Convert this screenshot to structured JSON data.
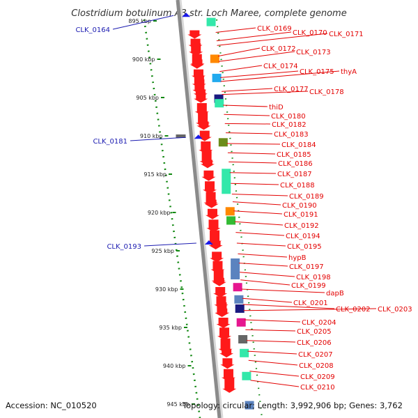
{
  "title": "Clostridium botulinum A3 str. Loch Maree, complete genome",
  "accession": "Accession: NC_010520",
  "topology": "Topology: circular; Length: 3,992,906 bp; Genes: 3,762",
  "colors": {
    "backbone": "#8a8a8a",
    "gene_red": "#ff1a1a",
    "label_red": "#e30000",
    "label_blue": "#1a1ab0",
    "tick_green": "#118811",
    "mint": "#33e8aa",
    "orange": "#ff8800",
    "navy": "#1a1a80",
    "steel": "#5b83bf",
    "magenta": "#e6168f",
    "gray": "#666666",
    "olive": "#6b8c1a",
    "green": "#33bb33",
    "sky": "#22aaee"
  },
  "scale": {
    "unit": "kbp",
    "ticks": [
      {
        "kbp": 895,
        "label": "895 kbp"
      },
      {
        "kbp": 900,
        "label": "900 kbp"
      },
      {
        "kbp": 905,
        "label": "905 kbp"
      },
      {
        "kbp": 910,
        "label": "910 kbp"
      },
      {
        "kbp": 915,
        "label": "915 kbp"
      },
      {
        "kbp": 920,
        "label": "920 kbp"
      },
      {
        "kbp": 925,
        "label": "925 kbp"
      },
      {
        "kbp": 930,
        "label": "930 kbp"
      },
      {
        "kbp": 935,
        "label": "935 kbp"
      },
      {
        "kbp": 940,
        "label": "940 kbp"
      },
      {
        "kbp": 945,
        "label": "945 kbp"
      }
    ]
  },
  "reverse_genes": [
    {
      "name": "CLK_0164",
      "kbp": 894.3
    },
    {
      "name": "CLK_0181",
      "kbp": 910.2
    },
    {
      "name": "CLK_0193",
      "kbp": 924.0
    }
  ],
  "forward_genes": [
    {
      "name": "CLK_0169",
      "kbp": 896.5
    },
    {
      "name": "CLK_0170",
      "kbp": 897.6
    },
    {
      "name": "CLK_0171",
      "kbp": 898.2
    },
    {
      "name": "CLK_0172",
      "kbp": 899.6
    },
    {
      "name": "CLK_0173",
      "kbp": 900.3
    },
    {
      "name": "CLK_0174",
      "kbp": 901.6
    },
    {
      "name": "CLK_0175",
      "kbp": 902.4
    },
    {
      "name": "thyA",
      "kbp": 902.9
    },
    {
      "name": "CLK_0177",
      "kbp": 904.2
    },
    {
      "name": "CLK_0178",
      "kbp": 904.6
    },
    {
      "name": "thiD",
      "kbp": 906.0
    },
    {
      "name": "CLK_0180",
      "kbp": 907.2
    },
    {
      "name": "CLK_0182",
      "kbp": 908.4
    },
    {
      "name": "CLK_0183",
      "kbp": 909.6
    },
    {
      "name": "CLK_0184",
      "kbp": 911.0
    },
    {
      "name": "CLK_0185",
      "kbp": 912.2
    },
    {
      "name": "CLK_0186",
      "kbp": 913.4
    },
    {
      "name": "CLK_0187",
      "kbp": 914.8
    },
    {
      "name": "CLK_0188",
      "kbp": 916.2
    },
    {
      "name": "CLK_0189",
      "kbp": 917.6
    },
    {
      "name": "CLK_0190",
      "kbp": 918.6
    },
    {
      "name": "CLK_0191",
      "kbp": 919.8
    },
    {
      "name": "CLK_0192",
      "kbp": 921.2
    },
    {
      "name": "CLK_0194",
      "kbp": 922.6
    },
    {
      "name": "CLK_0195",
      "kbp": 924.0
    },
    {
      "name": "hypB",
      "kbp": 925.4
    },
    {
      "name": "CLK_0197",
      "kbp": 926.6
    },
    {
      "name": "CLK_0198",
      "kbp": 927.8
    },
    {
      "name": "CLK_0199",
      "kbp": 928.8
    },
    {
      "name": "dapB",
      "kbp": 930.0
    },
    {
      "name": "CLK_0201",
      "kbp": 931.2
    },
    {
      "name": "CLK_0202",
      "kbp": 932.0
    },
    {
      "name": "CLK_0203",
      "kbp": 932.8
    },
    {
      "name": "CLK_0204",
      "kbp": 934.0
    },
    {
      "name": "CLK_0205",
      "kbp": 935.3
    },
    {
      "name": "CLK_0206",
      "kbp": 936.7
    },
    {
      "name": "CLK_0207",
      "kbp": 938.1
    },
    {
      "name": "CLK_0208",
      "kbp": 939.3
    },
    {
      "name": "CLK_0209",
      "kbp": 940.7
    },
    {
      "name": "CLK_0210",
      "kbp": 941.9
    }
  ]
}
